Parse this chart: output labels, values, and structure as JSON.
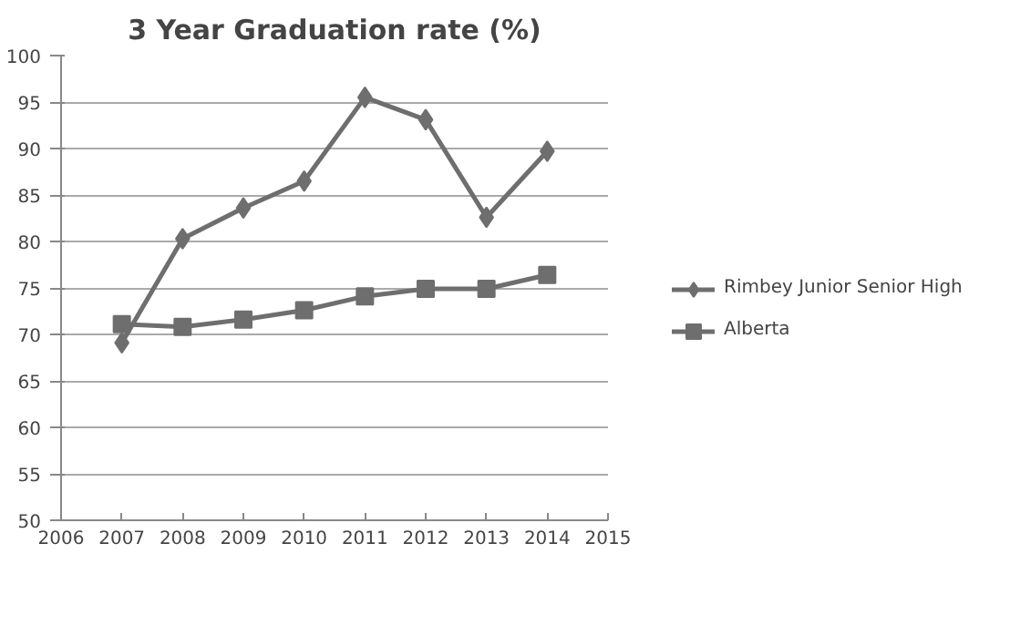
{
  "chart_data": {
    "type": "line",
    "title": "3 Year Graduation rate (%)",
    "x": [
      2007,
      2008,
      2009,
      2010,
      2011,
      2012,
      2013,
      2014
    ],
    "series": [
      {
        "name": "Rimbey Junior Senior High",
        "color": "#6e6e6e",
        "marker": "diamond",
        "values": [
          69.1,
          80.3,
          83.6,
          86.5,
          95.5,
          93.1,
          82.6,
          89.7
        ]
      },
      {
        "name": "Alberta",
        "color": "#6e6e6e",
        "marker": "square",
        "values": [
          71.1,
          70.8,
          71.6,
          72.6,
          74.1,
          74.9,
          74.9,
          76.4
        ]
      }
    ],
    "xlim": [
      2006,
      2015
    ],
    "xticks": [
      2006,
      2007,
      2008,
      2009,
      2010,
      2011,
      2012,
      2013,
      2014,
      2015
    ],
    "ylim": [
      50,
      100
    ],
    "yticks": [
      50,
      55,
      60,
      65,
      70,
      75,
      80,
      85,
      90,
      95,
      100
    ],
    "grid": "y",
    "legend": "right",
    "line_style": "solid"
  }
}
